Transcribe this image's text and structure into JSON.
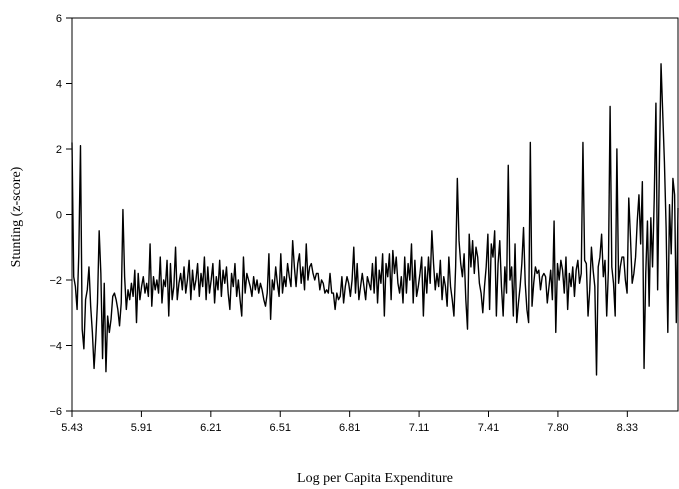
{
  "chart_data": {
    "type": "line",
    "title": "",
    "xlabel": "Log per Capita Expenditure",
    "ylabel": "Stunting (z-score)",
    "x_tick_labels": [
      "5.43",
      "5.91",
      "6.21",
      "6.51",
      "6.81",
      "7.11",
      "7.41",
      "7.80",
      "8.33"
    ],
    "y_ticks": [
      -6,
      -4,
      -2,
      0,
      2,
      4,
      6
    ],
    "ylim": [
      -6,
      6
    ],
    "grid": false,
    "legend": "none",
    "line_color": "#000000",
    "series": [
      {
        "values": [
          2.2,
          -1.9,
          -2.2,
          -2.9,
          -1.2,
          2.1,
          -3.5,
          -4.1,
          -2.6,
          -2.3,
          -1.6,
          -2.8,
          -3.6,
          -4.7,
          -3.8,
          -2.7,
          -0.5,
          -1.8,
          -4.4,
          -2.1,
          -4.8,
          -3.1,
          -3.6,
          -3.2,
          -2.5,
          -2.4,
          -2.6,
          -2.9,
          -3.4,
          -2.7,
          0.15,
          -1.9,
          -2.9,
          -2.3,
          -2.6,
          -2.1,
          -2.5,
          -1.7,
          -3.3,
          -1.8,
          -2.6,
          -2.2,
          -1.9,
          -2.4,
          -2.1,
          -2.5,
          -0.9,
          -2.8,
          -1.9,
          -2.3,
          -2.0,
          -2.4,
          -1.3,
          -2.7,
          -2.0,
          -2.2,
          -1.4,
          -3.1,
          -1.5,
          -2.6,
          -2.2,
          -1.0,
          -2.6,
          -2.1,
          -1.8,
          -2.3,
          -1.6,
          -2.4,
          -2.0,
          -1.4,
          -2.6,
          -1.7,
          -2.3,
          -2.0,
          -1.5,
          -2.5,
          -1.8,
          -2.2,
          -1.3,
          -2.6,
          -1.6,
          -2.4,
          -2.0,
          -1.5,
          -2.7,
          -1.9,
          -2.3,
          -1.4,
          -2.5,
          -1.7,
          -2.1,
          -1.6,
          -2.4,
          -2.9,
          -1.8,
          -2.2,
          -1.5,
          -2.5,
          -2.0,
          -2.6,
          -3.1,
          -1.3,
          -2.4,
          -1.8,
          -2.0,
          -2.2,
          -2.5,
          -1.9,
          -2.3,
          -2.0,
          -2.4,
          -2.1,
          -2.3,
          -2.6,
          -2.8,
          -2.4,
          -1.2,
          -3.2,
          -2.0,
          -2.3,
          -1.6,
          -2.1,
          -2.5,
          -1.2,
          -2.4,
          -1.9,
          -2.2,
          -1.5,
          -1.9,
          -2.2,
          -0.8,
          -1.6,
          -2.2,
          -1.5,
          -1.2,
          -2.1,
          -1.6,
          -2.3,
          -0.9,
          -2.0,
          -1.6,
          -1.5,
          -1.8,
          -2.0,
          -1.8,
          -1.8,
          -2.3,
          -2.0,
          -2.1,
          -2.4,
          -2.3,
          -2.4,
          -1.8,
          -2.4,
          -2.4,
          -2.9,
          -2.4,
          -2.6,
          -2.5,
          -1.9,
          -2.7,
          -2.2,
          -1.9,
          -2.1,
          -2.5,
          -2.0,
          -1.0,
          -2.4,
          -1.5,
          -2.6,
          -2.2,
          -1.8,
          -2.2,
          -2.6,
          -1.9,
          -2.1,
          -2.3,
          -1.5,
          -2.4,
          -1.3,
          -2.7,
          -1.7,
          -2.1,
          -1.2,
          -3.1,
          -1.5,
          -1.9,
          -1.2,
          -2.6,
          -1.1,
          -1.8,
          -1.3,
          -2.1,
          -2.4,
          -1.9,
          -2.7,
          -1.3,
          -2.4,
          -1.5,
          -2.0,
          -0.9,
          -2.7,
          -1.4,
          -2.5,
          -2.2,
          -1.8,
          -1.3,
          -3.1,
          -1.6,
          -2.4,
          -1.3,
          -2.1,
          -0.5,
          -1.5,
          -2.3,
          -1.8,
          -2.2,
          -1.4,
          -2.6,
          -1.9,
          -2.2,
          -2.8,
          -1.3,
          -2.2,
          -2.6,
          -3.1,
          -1.6,
          1.1,
          -0.8,
          -1.5,
          -1.9,
          -1.2,
          -2.6,
          -3.5,
          -0.6,
          -1.6,
          -0.8,
          -1.8,
          -1.0,
          -1.3,
          -2.1,
          -2.4,
          -3.0,
          -2.2,
          -1.6,
          -0.6,
          -2.9,
          -0.9,
          -1.3,
          -0.5,
          -3.1,
          -1.5,
          -0.8,
          -2.2,
          -3.1,
          -1.6,
          -2.4,
          1.5,
          -2.0,
          -1.6,
          -3.1,
          -0.9,
          -3.3,
          -2.7,
          -2.2,
          -1.5,
          -0.4,
          -2.1,
          -2.9,
          -3.3,
          2.2,
          -2.8,
          -2.1,
          -1.6,
          -1.8,
          -1.7,
          -2.3,
          -1.9,
          -1.8,
          -1.9,
          -2.7,
          -2.2,
          -1.7,
          -2.6,
          -0.2,
          -3.6,
          -1.5,
          -2.0,
          -1.4,
          -1.7,
          -2.4,
          -1.3,
          -2.9,
          -1.8,
          -2.2,
          -1.6,
          -2.5,
          -1.7,
          -1.4,
          -2.1,
          -1.8,
          2.2,
          -1.4,
          -1.5,
          -3.1,
          -2.3,
          -1.0,
          -1.7,
          -2.2,
          -4.9,
          -1.6,
          -1.3,
          -0.6,
          -1.9,
          -1.4,
          -3.1,
          -1.7,
          3.3,
          -1.6,
          -2.1,
          -3.1,
          2.0,
          -2.1,
          -1.6,
          -1.3,
          -1.3,
          -2.0,
          -2.4,
          0.5,
          -0.7,
          -2.1,
          -1.8,
          -1.3,
          -0.2,
          0.6,
          -0.9,
          1.0,
          -4.7,
          -1.8,
          -0.2,
          -2.8,
          -0.1,
          -1.6,
          0.5,
          3.4,
          -2.3,
          1.4,
          4.6,
          3.1,
          1.6,
          -0.4,
          -3.6,
          0.3,
          -1.2,
          1.1,
          0.6,
          -3.3,
          0.2
        ]
      }
    ]
  }
}
